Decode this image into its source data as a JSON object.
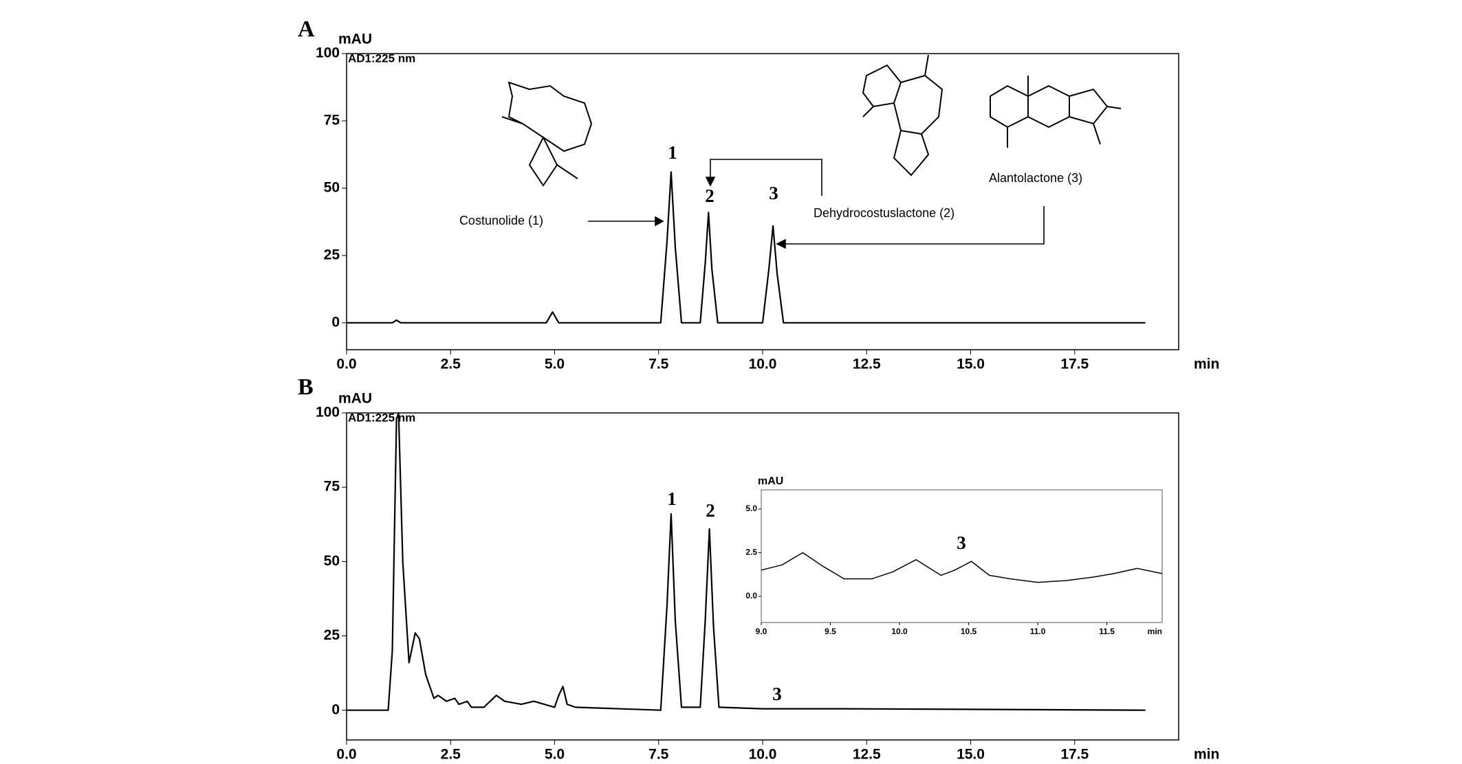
{
  "chart_data": [
    {
      "type": "line",
      "panel": "A",
      "y_label": "mAU",
      "annotation": "AD1:225 nm",
      "x_label": "min",
      "x": [
        0,
        1.1,
        1.2,
        1.3,
        4.8,
        4.95,
        5.1,
        7.55,
        7.7,
        7.8,
        7.9,
        8.05,
        8.5,
        8.62,
        8.7,
        8.78,
        8.92,
        10.0,
        10.15,
        10.25,
        10.35,
        10.5,
        19.2
      ],
      "values": [
        0,
        0,
        1,
        0,
        0,
        4,
        0,
        0,
        30,
        56,
        28,
        0,
        0,
        22,
        41,
        20,
        0,
        0,
        20,
        36,
        18,
        0,
        0
      ],
      "color": "#000000",
      "xlim": [
        0,
        20
      ],
      "ylim": [
        -10,
        100
      ],
      "xticks": [
        {
          "value": 0,
          "label": "0.0"
        },
        2.5,
        {
          "value": 5,
          "label": "5.0"
        },
        7.5,
        {
          "value": 10,
          "label": "10.0"
        },
        12.5,
        {
          "value": 15,
          "label": "15.0"
        },
        17.5
      ],
      "yticks": [
        0,
        25,
        50,
        75,
        100
      ],
      "peak_labels": [
        "1",
        "2",
        "3"
      ],
      "compounds": [
        "Costunolide (1)",
        "Dehydrocostuslactone (2)",
        "Alantolactone (3)"
      ]
    },
    {
      "type": "line",
      "panel": "B",
      "y_label": "mAU",
      "annotation": "AD1:225 nm",
      "x_label": "min",
      "x": [
        0,
        1.0,
        1.1,
        1.2,
        1.25,
        1.35,
        1.5,
        1.65,
        1.75,
        1.9,
        2.1,
        2.2,
        2.4,
        2.6,
        2.7,
        2.9,
        3.0,
        3.3,
        3.6,
        3.8,
        4.2,
        4.5,
        5.0,
        5.1,
        5.2,
        5.3,
        5.5,
        7.55,
        7.7,
        7.8,
        7.9,
        8.05,
        8.5,
        8.62,
        8.72,
        8.82,
        8.95,
        10.0,
        12.0,
        19.2
      ],
      "values": [
        0,
        0,
        20,
        98,
        100,
        50,
        16,
        26,
        24,
        12,
        4,
        5,
        3,
        4,
        2,
        3,
        1,
        1,
        5,
        3,
        2,
        3,
        1,
        5,
        8,
        2,
        1,
        0,
        35,
        66,
        30,
        1,
        1,
        30,
        61,
        28,
        1,
        0.5,
        0.5,
        0
      ],
      "color": "#000000",
      "xlim": [
        0,
        20
      ],
      "ylim": [
        -10,
        100
      ],
      "xticks": [
        {
          "value": 0,
          "label": "0.0"
        },
        2.5,
        {
          "value": 5,
          "label": "5.0"
        },
        7.5,
        {
          "value": 10,
          "label": "10.0"
        },
        12.5,
        {
          "value": 15,
          "label": "15.0"
        },
        17.5
      ],
      "yticks": [
        0,
        25,
        50,
        75,
        100
      ],
      "peak_labels": [
        "1",
        "2",
        "3"
      ]
    },
    {
      "type": "line",
      "y_label": "mAU",
      "x_label": "min",
      "x": [
        9.0,
        9.15,
        9.3,
        9.45,
        9.6,
        9.8,
        9.95,
        10.12,
        10.3,
        10.4,
        10.52,
        10.65,
        10.8,
        11.0,
        11.2,
        11.4,
        11.55,
        11.72,
        11.9
      ],
      "values": [
        1.5,
        1.8,
        2.5,
        1.7,
        1.0,
        1.0,
        1.4,
        2.1,
        1.2,
        1.5,
        2.0,
        1.2,
        1.0,
        0.8,
        0.9,
        1.1,
        1.3,
        1.6,
        1.3
      ],
      "color": "#000000",
      "xlim": [
        9,
        11.9
      ],
      "ylim": [
        -1.5,
        6.1
      ],
      "xticks": [
        {
          "value": 9,
          "label": "9.0"
        },
        9.5,
        {
          "value": 10,
          "label": "10.0"
        },
        10.5,
        {
          "value": 11,
          "label": "11.0"
        },
        11.5
      ],
      "yticks": [
        {
          "value": 0,
          "label": "0.0"
        },
        2.5,
        {
          "value": 5,
          "label": "5.0"
        }
      ],
      "peak_labels": [
        "3"
      ]
    }
  ]
}
